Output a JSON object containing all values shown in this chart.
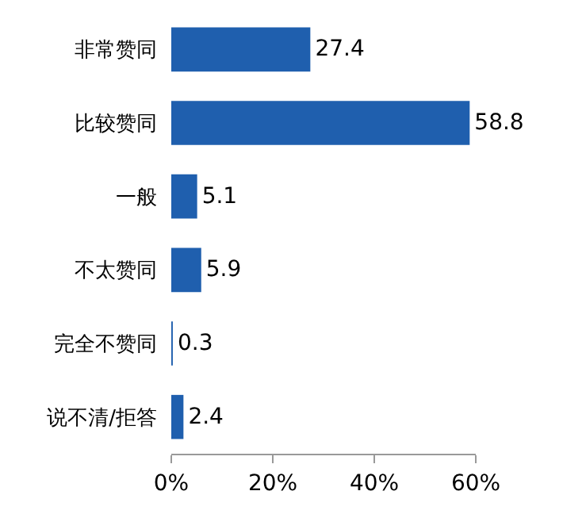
{
  "chart_data": {
    "type": "bar",
    "orientation": "horizontal",
    "categories": [
      "非常赞同",
      "比较赞同",
      "一般",
      "不太赞同",
      "完全不赞同",
      "说不清/拒答"
    ],
    "values": [
      27.4,
      58.8,
      5.1,
      5.9,
      0.3,
      2.4
    ],
    "color": "#1f5fae",
    "data_labels": true,
    "grid": false,
    "xlim": [
      0,
      60
    ],
    "xticks": [
      {
        "value": 0,
        "label": "0%"
      },
      {
        "value": 20,
        "label": "20%"
      },
      {
        "value": 40,
        "label": "40%"
      },
      {
        "value": 60,
        "label": "60%"
      }
    ]
  }
}
